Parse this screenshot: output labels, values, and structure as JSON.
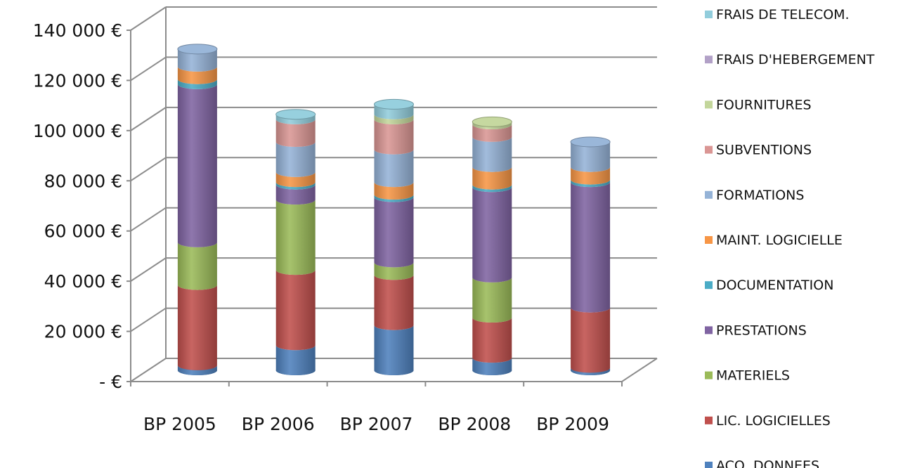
{
  "chart_data": {
    "type": "bar",
    "stacked": true,
    "three_d": true,
    "title": "",
    "xlabel": "",
    "ylabel": "",
    "ylim": [
      0,
      140000
    ],
    "grid": true,
    "legend_position": "right",
    "y_tick_labels": [
      "- €",
      "20 000 €",
      "40 000 €",
      "60 000 €",
      "80 000 €",
      "100 000 €",
      "120 000 €",
      "140 000 €"
    ],
    "categories": [
      "BP 2005",
      "BP 2006",
      "BP 2007",
      "BP 2008",
      "BP 2009"
    ],
    "series": [
      {
        "name": "ACQ. DONNEES",
        "color": "#4F81BD",
        "values": [
          2000,
          10000,
          18000,
          5000,
          1000
        ]
      },
      {
        "name": "LIC. LOGICIELLES",
        "color": "#C0504D",
        "values": [
          32000,
          30000,
          20000,
          16000,
          24000
        ]
      },
      {
        "name": "MATERIELS",
        "color": "#9BBB59",
        "values": [
          17000,
          28000,
          5000,
          16000,
          0
        ]
      },
      {
        "name": "PRESTATIONS",
        "color": "#8064A2",
        "values": [
          63000,
          6000,
          26000,
          36000,
          50000
        ]
      },
      {
        "name": "DOCUMENTATION",
        "color": "#4BACC6",
        "values": [
          2000,
          1000,
          1000,
          1000,
          1000
        ]
      },
      {
        "name": "MAINT. LOGICIELLE",
        "color": "#F79646",
        "values": [
          5000,
          4000,
          5000,
          7000,
          5000
        ]
      },
      {
        "name": "FORMATIONS",
        "color": "#95B3D7",
        "values": [
          7000,
          12000,
          13000,
          12000,
          10000
        ]
      },
      {
        "name": "SUBVENTIONS",
        "color": "#DA9694",
        "values": [
          0,
          9000,
          12000,
          5000,
          0
        ]
      },
      {
        "name": "FOURNITURES",
        "color": "#C3D69B",
        "values": [
          0,
          0,
          2000,
          1000,
          0
        ]
      },
      {
        "name": "FRAIS D'HEBERGEMENT",
        "color": "#B2A1C7",
        "values": [
          0,
          0,
          0,
          0,
          0
        ]
      },
      {
        "name": "FRAIS DE TELECOM.",
        "color": "#92CDDC",
        "values": [
          0,
          2000,
          4000,
          0,
          0
        ]
      }
    ]
  }
}
